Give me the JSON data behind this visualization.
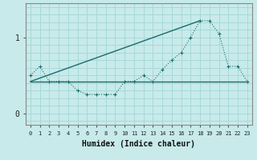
{
  "xlabel": "Humidex (Indice chaleur)",
  "bg_color": "#c8eaea",
  "grid_color": "#a8d8d8",
  "line_color": "#1a6b6b",
  "xlim": [
    -0.5,
    23.5
  ],
  "ylim": [
    -0.15,
    1.45
  ],
  "yticks": [
    0,
    1
  ],
  "xticks": [
    0,
    1,
    2,
    3,
    4,
    5,
    6,
    7,
    8,
    9,
    10,
    11,
    12,
    13,
    14,
    15,
    16,
    17,
    18,
    19,
    20,
    21,
    22,
    23
  ],
  "flat_line_x": [
    0,
    23
  ],
  "flat_line_y": [
    0.42,
    0.42
  ],
  "diag_line_x": [
    0,
    18
  ],
  "diag_line_y": [
    0.42,
    1.22
  ],
  "jagged_x": [
    0,
    1,
    2,
    3,
    4,
    5,
    6,
    7,
    8,
    9,
    10,
    11,
    12,
    13,
    14,
    15,
    16,
    17,
    18,
    19,
    20,
    21,
    22,
    23
  ],
  "jagged_y": [
    0.5,
    0.62,
    0.42,
    0.42,
    0.42,
    0.3,
    0.25,
    0.25,
    0.25,
    0.25,
    0.42,
    0.42,
    0.5,
    0.42,
    0.58,
    0.7,
    0.8,
    1.0,
    1.22,
    1.22,
    1.05,
    0.62,
    0.62,
    0.42
  ]
}
